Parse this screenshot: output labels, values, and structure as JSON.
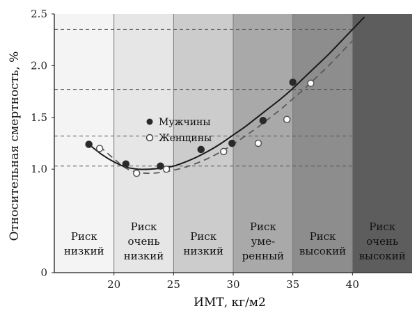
{
  "chart_data": {
    "type": "scatter",
    "xlabel": "ИМТ, кг/м2",
    "ylabel": "Относительная смертность, %",
    "xlim": [
      15,
      45
    ],
    "ylim": [
      0,
      2.5
    ],
    "x_ticks": [
      "20",
      "25",
      "30",
      "35",
      "40"
    ],
    "y_ticks": [
      "0",
      "1.0",
      "1.5",
      "2.0",
      "2.5"
    ],
    "grid": false,
    "legend_position": "center-left",
    "zones": [
      {
        "from": 15,
        "to": 20,
        "lines": [
          "Риск",
          "низкий"
        ],
        "color": "#f4f4f4"
      },
      {
        "from": 20,
        "to": 25,
        "lines": [
          "Риск",
          "очень",
          "низкий"
        ],
        "color": "#e6e6e6"
      },
      {
        "from": 25,
        "to": 30,
        "lines": [
          "Риск",
          "низкий"
        ],
        "color": "#cccccc"
      },
      {
        "from": 30,
        "to": 35,
        "lines": [
          "Риск",
          "уме-",
          "ренный"
        ],
        "color": "#a9a9a9"
      },
      {
        "from": 35,
        "to": 40,
        "lines": [
          "Риск",
          "высокий"
        ],
        "color": "#8d8d8d"
      },
      {
        "from": 40,
        "to": 45,
        "lines": [
          "Риск",
          "очень",
          "высокий"
        ],
        "color": "#5d5d5d"
      }
    ],
    "reference_lines_y": [
      1.03,
      1.32,
      1.77,
      2.35
    ],
    "series": [
      {
        "name": "Мужчины",
        "marker": "filled",
        "x": [
          17.9,
          21.0,
          23.9,
          27.3,
          29.9,
          32.5,
          35.0
        ],
        "y": [
          1.24,
          1.05,
          1.03,
          1.19,
          1.25,
          1.47,
          1.84
        ]
      },
      {
        "name": "Женщины",
        "marker": "open",
        "x": [
          18.8,
          21.9,
          24.4,
          29.2,
          32.1,
          34.5,
          36.5
        ],
        "y": [
          1.2,
          0.96,
          1.0,
          1.17,
          1.25,
          1.48,
          1.83
        ]
      }
    ],
    "fit_curves": [
      {
        "series": "Мужчины",
        "style": "solid",
        "x": [
          17.9,
          19,
          20,
          21,
          22,
          23,
          24,
          25,
          26,
          27,
          28,
          29,
          30,
          31,
          32,
          33,
          34,
          35,
          36,
          37,
          38,
          39,
          40,
          41
        ],
        "y": [
          1.24,
          1.14,
          1.07,
          1.02,
          1.0,
          1.0,
          1.01,
          1.03,
          1.07,
          1.12,
          1.18,
          1.25,
          1.33,
          1.41,
          1.5,
          1.59,
          1.68,
          1.78,
          1.89,
          2.0,
          2.11,
          2.23,
          2.35,
          2.47
        ]
      },
      {
        "series": "Женщины",
        "style": "dashed",
        "x": [
          18.8,
          20,
          21,
          22,
          23,
          24,
          25,
          26,
          27,
          28,
          29,
          30,
          31,
          32,
          33,
          34,
          35,
          36,
          37,
          38,
          39,
          40
        ],
        "y": [
          1.22,
          1.1,
          1.01,
          0.97,
          0.96,
          0.97,
          0.99,
          1.02,
          1.06,
          1.11,
          1.17,
          1.24,
          1.32,
          1.4,
          1.49,
          1.58,
          1.68,
          1.78,
          1.89,
          2.0,
          2.12,
          2.24
        ]
      }
    ]
  }
}
